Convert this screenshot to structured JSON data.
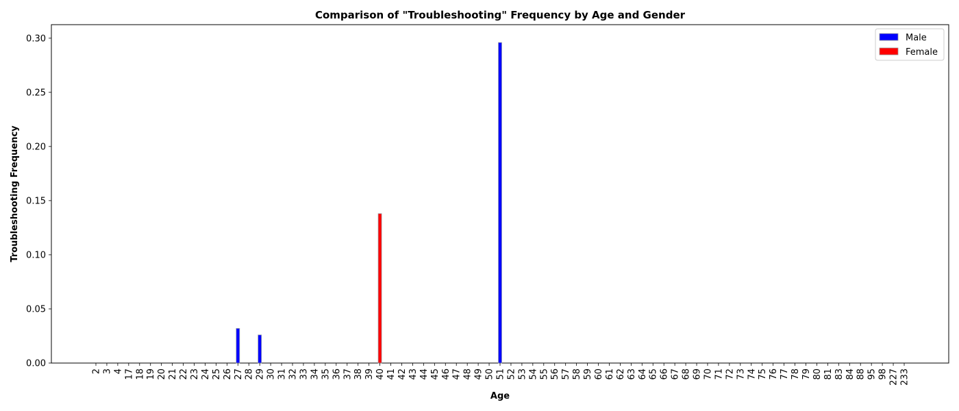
{
  "chart_data": {
    "type": "bar",
    "title": "Comparison of \"Troubleshooting\" Frequency by Age and Gender",
    "xlabel": "Age",
    "ylabel": "Troubleshooting Frequency",
    "categories": [
      "2",
      "3",
      "4",
      "17",
      "18",
      "19",
      "20",
      "21",
      "22",
      "23",
      "24",
      "25",
      "26",
      "27",
      "28",
      "29",
      "30",
      "31",
      "32",
      "33",
      "34",
      "35",
      "36",
      "37",
      "38",
      "39",
      "40",
      "41",
      "42",
      "43",
      "44",
      "45",
      "46",
      "47",
      "48",
      "49",
      "50",
      "51",
      "52",
      "53",
      "54",
      "55",
      "56",
      "57",
      "58",
      "59",
      "60",
      "61",
      "62",
      "63",
      "64",
      "65",
      "66",
      "67",
      "68",
      "69",
      "70",
      "71",
      "72",
      "73",
      "74",
      "75",
      "76",
      "77",
      "78",
      "79",
      "80",
      "81",
      "83",
      "84",
      "88",
      "95",
      "98",
      "227",
      "233"
    ],
    "series": [
      {
        "name": "Male",
        "color": "#0000ff",
        "values": [
          0,
          0,
          0,
          0,
          0,
          0,
          0,
          0,
          0,
          0,
          0,
          0,
          0,
          0.032,
          0,
          0.026,
          0,
          0,
          0,
          0,
          0,
          0,
          0,
          0,
          0,
          0,
          0,
          0,
          0,
          0,
          0,
          0,
          0,
          0,
          0,
          0,
          0,
          0.296,
          0,
          0,
          0,
          0,
          0,
          0,
          0,
          0,
          0,
          0,
          0,
          0,
          0,
          0,
          0,
          0,
          0,
          0,
          0,
          0,
          0,
          0,
          0,
          0,
          0,
          0,
          0,
          0,
          0,
          0,
          0,
          0,
          0,
          0,
          0,
          0,
          0
        ]
      },
      {
        "name": "Female",
        "color": "#ff0000",
        "values": [
          0,
          0,
          0,
          0,
          0,
          0,
          0,
          0,
          0,
          0,
          0,
          0,
          0,
          0,
          0,
          0,
          0,
          0,
          0,
          0,
          0,
          0,
          0,
          0,
          0,
          0,
          0.138,
          0,
          0,
          0,
          0,
          0,
          0,
          0,
          0,
          0,
          0,
          0,
          0,
          0,
          0,
          0,
          0,
          0,
          0,
          0,
          0,
          0,
          0,
          0,
          0,
          0,
          0,
          0,
          0,
          0,
          0,
          0,
          0,
          0,
          0,
          0,
          0,
          0,
          0,
          0,
          0,
          0,
          0,
          0,
          0,
          0,
          0,
          0,
          0
        ]
      }
    ],
    "ylim": [
      0,
      0.3125
    ],
    "yticks": [
      "0.00",
      "0.05",
      "0.10",
      "0.15",
      "0.20",
      "0.25",
      "0.30"
    ],
    "ytick_values": [
      0,
      0.05,
      0.1,
      0.15,
      0.2,
      0.25,
      0.3
    ],
    "grid": false,
    "legend_position": "top-right"
  }
}
